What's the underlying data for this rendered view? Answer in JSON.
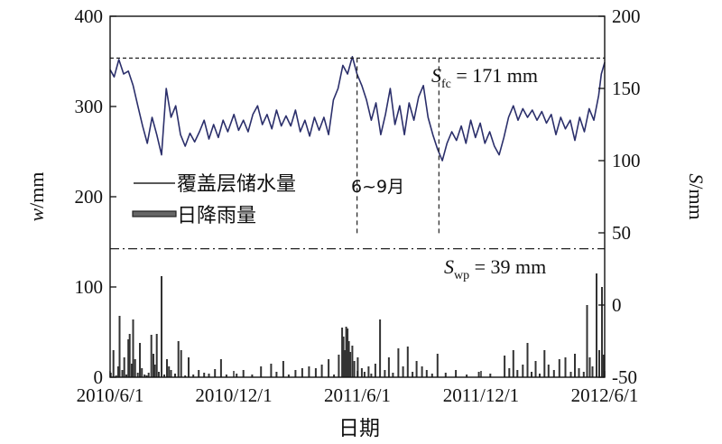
{
  "chart_data": {
    "type": "line",
    "x_range": [
      "2010-06-01",
      "2012-06-01"
    ],
    "xticks": [
      "2010/6/1",
      "2010/12/1",
      "2011/6/1",
      "2011/12/1",
      "2012/6/1"
    ],
    "xlabel": "日期",
    "left_axis": {
      "label_var": "w",
      "label_unit": "/mm",
      "ylim": [
        0,
        400
      ],
      "ticks": [
        "0",
        "100",
        "200",
        "300",
        "400"
      ]
    },
    "right_axis": {
      "label_var": "S",
      "label_unit": "/mm",
      "ylim": [
        -50,
        200
      ],
      "ticks": [
        "-50",
        "0",
        "50",
        "100",
        "150",
        "200"
      ]
    },
    "reference_lines": {
      "field_capacity": {
        "sym": "S",
        "sub": "fc",
        "rest": " = 171 mm",
        "value": 171
      },
      "wilting_point": {
        "sym": "S",
        "sub": "wp",
        "rest": " = 39 mm",
        "value": 39
      }
    },
    "period_annotation": {
      "text": "6~9月",
      "start": "2011-06-01",
      "end": "2011-09-30"
    },
    "legend": [
      "覆盖层储水量",
      "日降雨量"
    ],
    "series": [
      {
        "name": "覆盖层储水量",
        "axis": "right",
        "color": "#2b2f6b",
        "points": [
          [
            "2010-06-01",
            163
          ],
          [
            "2010-06-07",
            158
          ],
          [
            "2010-06-14",
            170
          ],
          [
            "2010-06-21",
            160
          ],
          [
            "2010-06-28",
            162
          ],
          [
            "2010-07-05",
            152
          ],
          [
            "2010-07-12",
            138
          ],
          [
            "2010-07-19",
            124
          ],
          [
            "2010-07-26",
            112
          ],
          [
            "2010-08-02",
            130
          ],
          [
            "2010-08-09",
            118
          ],
          [
            "2010-08-16",
            104
          ],
          [
            "2010-08-23",
            150
          ],
          [
            "2010-08-30",
            130
          ],
          [
            "2010-09-06",
            138
          ],
          [
            "2010-09-13",
            118
          ],
          [
            "2010-09-20",
            110
          ],
          [
            "2010-09-27",
            119
          ],
          [
            "2010-10-04",
            113
          ],
          [
            "2010-10-11",
            120
          ],
          [
            "2010-10-18",
            128
          ],
          [
            "2010-10-25",
            115
          ],
          [
            "2010-11-01",
            125
          ],
          [
            "2010-11-08",
            116
          ],
          [
            "2010-11-15",
            128
          ],
          [
            "2010-11-22",
            120
          ],
          [
            "2010-12-01",
            132
          ],
          [
            "2010-12-08",
            121
          ],
          [
            "2010-12-15",
            128
          ],
          [
            "2010-12-22",
            120
          ],
          [
            "2010-12-29",
            132
          ],
          [
            "2011-01-05",
            138
          ],
          [
            "2011-01-12",
            125
          ],
          [
            "2011-01-19",
            132
          ],
          [
            "2011-01-26",
            122
          ],
          [
            "2011-02-02",
            135
          ],
          [
            "2011-02-09",
            124
          ],
          [
            "2011-02-16",
            131
          ],
          [
            "2011-02-23",
            124
          ],
          [
            "2011-03-02",
            135
          ],
          [
            "2011-03-09",
            120
          ],
          [
            "2011-03-16",
            128
          ],
          [
            "2011-03-23",
            117
          ],
          [
            "2011-03-30",
            130
          ],
          [
            "2011-04-06",
            121
          ],
          [
            "2011-04-13",
            130
          ],
          [
            "2011-04-20",
            118
          ],
          [
            "2011-04-27",
            142
          ],
          [
            "2011-05-04",
            150
          ],
          [
            "2011-05-11",
            166
          ],
          [
            "2011-05-18",
            160
          ],
          [
            "2011-05-25",
            172
          ],
          [
            "2011-06-01",
            160
          ],
          [
            "2011-06-08",
            152
          ],
          [
            "2011-06-15",
            142
          ],
          [
            "2011-06-22",
            128
          ],
          [
            "2011-06-29",
            140
          ],
          [
            "2011-07-06",
            118
          ],
          [
            "2011-07-13",
            132
          ],
          [
            "2011-07-20",
            150
          ],
          [
            "2011-07-27",
            125
          ],
          [
            "2011-08-03",
            138
          ],
          [
            "2011-08-10",
            118
          ],
          [
            "2011-08-17",
            140
          ],
          [
            "2011-08-24",
            128
          ],
          [
            "2011-08-31",
            144
          ],
          [
            "2011-09-07",
            152
          ],
          [
            "2011-09-14",
            130
          ],
          [
            "2011-09-21",
            118
          ],
          [
            "2011-09-28",
            108
          ],
          [
            "2011-10-05",
            100
          ],
          [
            "2011-10-12",
            112
          ],
          [
            "2011-10-19",
            120
          ],
          [
            "2011-10-26",
            114
          ],
          [
            "2011-11-02",
            124
          ],
          [
            "2011-11-09",
            112
          ],
          [
            "2011-11-16",
            128
          ],
          [
            "2011-11-23",
            116
          ],
          [
            "2011-11-30",
            126
          ],
          [
            "2011-12-07",
            112
          ],
          [
            "2011-12-14",
            120
          ],
          [
            "2011-12-21",
            110
          ],
          [
            "2011-12-28",
            104
          ],
          [
            "2012-01-04",
            116
          ],
          [
            "2012-01-11",
            130
          ],
          [
            "2012-01-18",
            138
          ],
          [
            "2012-01-25",
            128
          ],
          [
            "2012-02-01",
            136
          ],
          [
            "2012-02-08",
            130
          ],
          [
            "2012-02-15",
            135
          ],
          [
            "2012-02-22",
            128
          ],
          [
            "2012-02-29",
            134
          ],
          [
            "2012-03-07",
            126
          ],
          [
            "2012-03-14",
            132
          ],
          [
            "2012-03-21",
            118
          ],
          [
            "2012-03-28",
            130
          ],
          [
            "2012-04-04",
            122
          ],
          [
            "2012-04-11",
            128
          ],
          [
            "2012-04-18",
            114
          ],
          [
            "2012-04-25",
            130
          ],
          [
            "2012-05-02",
            120
          ],
          [
            "2012-05-09",
            136
          ],
          [
            "2012-05-16",
            128
          ],
          [
            "2012-05-23",
            145
          ],
          [
            "2012-05-27",
            160
          ],
          [
            "2012-06-01",
            168
          ]
        ]
      },
      {
        "name": "日降雨量",
        "axis": "left",
        "type": "bar",
        "color": "#333333",
        "points": [
          [
            "2010-06-02",
            5
          ],
          [
            "2010-06-06",
            30
          ],
          [
            "2010-06-10",
            2
          ],
          [
            "2010-06-13",
            12
          ],
          [
            "2010-06-15",
            68
          ],
          [
            "2010-06-19",
            8
          ],
          [
            "2010-06-22",
            22
          ],
          [
            "2010-06-25",
            3
          ],
          [
            "2010-06-28",
            42
          ],
          [
            "2010-06-30",
            48
          ],
          [
            "2010-07-03",
            15
          ],
          [
            "2010-07-05",
            64
          ],
          [
            "2010-07-08",
            20
          ],
          [
            "2010-07-12",
            5
          ],
          [
            "2010-07-15",
            38
          ],
          [
            "2010-07-18",
            10
          ],
          [
            "2010-07-22",
            3
          ],
          [
            "2010-07-25",
            2
          ],
          [
            "2010-07-28",
            5
          ],
          [
            "2010-08-01",
            47
          ],
          [
            "2010-08-04",
            26
          ],
          [
            "2010-08-06",
            14
          ],
          [
            "2010-08-09",
            48
          ],
          [
            "2010-08-12",
            6
          ],
          [
            "2010-08-16",
            112
          ],
          [
            "2010-08-20",
            3
          ],
          [
            "2010-08-24",
            20
          ],
          [
            "2010-08-27",
            12
          ],
          [
            "2010-08-30",
            8
          ],
          [
            "2010-09-05",
            4
          ],
          [
            "2010-09-10",
            40
          ],
          [
            "2010-09-14",
            30
          ],
          [
            "2010-09-20",
            2
          ],
          [
            "2010-09-25",
            22
          ],
          [
            "2010-10-02",
            3
          ],
          [
            "2010-10-10",
            8
          ],
          [
            "2010-10-18",
            5
          ],
          [
            "2010-10-25",
            4
          ],
          [
            "2010-11-03",
            9
          ],
          [
            "2010-11-12",
            20
          ],
          [
            "2010-11-20",
            3
          ],
          [
            "2010-12-05",
            4
          ],
          [
            "2010-12-15",
            8
          ],
          [
            "2010-12-28",
            3
          ],
          [
            "2011-01-10",
            12
          ],
          [
            "2011-01-25",
            15
          ],
          [
            "2011-02-02",
            6
          ],
          [
            "2011-02-12",
            18
          ],
          [
            "2011-02-20",
            3
          ],
          [
            "2011-03-02",
            8
          ],
          [
            "2011-03-12",
            10
          ],
          [
            "2011-03-22",
            12
          ],
          [
            "2011-04-01",
            10
          ],
          [
            "2011-04-10",
            14
          ],
          [
            "2011-04-20",
            20
          ],
          [
            "2011-04-28",
            3
          ],
          [
            "2011-05-05",
            25
          ],
          [
            "2011-05-10",
            55
          ],
          [
            "2011-05-12",
            45
          ],
          [
            "2011-05-14",
            30
          ],
          [
            "2011-05-16",
            56
          ],
          [
            "2011-05-18",
            54
          ],
          [
            "2011-05-20",
            40
          ],
          [
            "2011-05-22",
            28
          ],
          [
            "2011-05-25",
            35
          ],
          [
            "2011-05-28",
            18
          ],
          [
            "2011-06-02",
            22
          ],
          [
            "2011-06-08",
            10
          ],
          [
            "2011-06-12",
            6
          ],
          [
            "2011-06-18",
            12
          ],
          [
            "2011-06-22",
            4
          ],
          [
            "2011-06-28",
            15
          ],
          [
            "2011-07-05",
            64
          ],
          [
            "2011-07-12",
            8
          ],
          [
            "2011-07-18",
            22
          ],
          [
            "2011-07-24",
            5
          ],
          [
            "2011-08-01",
            32
          ],
          [
            "2011-08-08",
            12
          ],
          [
            "2011-08-15",
            34
          ],
          [
            "2011-08-22",
            6
          ],
          [
            "2011-08-28",
            18
          ],
          [
            "2011-09-05",
            12
          ],
          [
            "2011-09-12",
            8
          ],
          [
            "2011-09-20",
            4
          ],
          [
            "2011-09-28",
            26
          ],
          [
            "2011-10-10",
            5
          ],
          [
            "2011-10-25",
            8
          ],
          [
            "2011-11-10",
            3
          ],
          [
            "2011-11-28",
            6
          ],
          [
            "2011-12-15",
            4
          ],
          [
            "2012-01-05",
            24
          ],
          [
            "2012-01-12",
            10
          ],
          [
            "2012-01-18",
            30
          ],
          [
            "2012-01-24",
            8
          ],
          [
            "2012-02-01",
            14
          ],
          [
            "2012-02-08",
            38
          ],
          [
            "2012-02-14",
            6
          ],
          [
            "2012-02-20",
            18
          ],
          [
            "2012-02-26",
            4
          ],
          [
            "2012-03-04",
            30
          ],
          [
            "2012-03-10",
            14
          ],
          [
            "2012-03-18",
            8
          ],
          [
            "2012-03-26",
            20
          ],
          [
            "2012-04-04",
            22
          ],
          [
            "2012-04-12",
            6
          ],
          [
            "2012-04-18",
            26
          ],
          [
            "2012-04-24",
            10
          ],
          [
            "2012-05-01",
            6
          ],
          [
            "2012-05-06",
            80
          ],
          [
            "2012-05-10",
            22
          ],
          [
            "2012-05-14",
            12
          ],
          [
            "2012-05-20",
            115
          ],
          [
            "2012-05-24",
            30
          ],
          [
            "2012-05-28",
            100
          ],
          [
            "2012-05-30",
            25
          ]
        ]
      }
    ]
  }
}
